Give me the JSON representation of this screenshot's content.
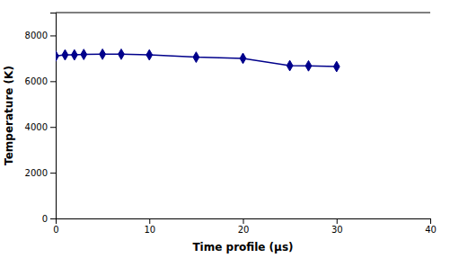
{
  "chart_data": {
    "type": "line",
    "x": [
      0,
      1,
      2,
      3,
      5,
      7,
      10,
      15,
      20,
      25,
      27,
      30
    ],
    "values": [
      7100,
      7150,
      7150,
      7170,
      7180,
      7180,
      7150,
      7050,
      7000,
      6680,
      6670,
      6640
    ],
    "color": "#00008B",
    "marker": "diamond",
    "xlabel": "Time profile (μs)",
    "ylabel": "Temperature (K)",
    "xlim": [
      0,
      40
    ],
    "ylim": [
      0,
      9000
    ],
    "xticks": [
      0,
      10,
      20,
      30,
      40
    ],
    "yticks": [
      0,
      2000,
      4000,
      6000,
      8000
    ]
  }
}
